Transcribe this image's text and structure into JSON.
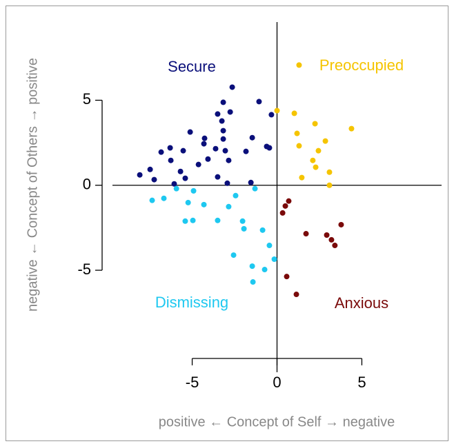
{
  "chart_data": {
    "type": "scatter",
    "x_label": "positive ←  Concept of Self  → negative",
    "y_label": "negative ←  Concept of Others → positive",
    "xlim": [
      -9.7,
      9.7
    ],
    "ylim": [
      -11,
      9.6
    ],
    "xticks": [
      -5,
      0,
      5
    ],
    "yticks": [
      -5,
      0,
      5
    ],
    "series": [
      {
        "name": "Secure",
        "color": "#0a0f7a",
        "x": [
          -2.64,
          -1.06,
          -3.17,
          -3.5,
          -2.76,
          -0.33,
          -3.25,
          -5.12,
          -3.17,
          -4.27,
          -3.17,
          -1.46,
          -0.61,
          -0.45,
          -6.3,
          -4.31,
          -3.62,
          -6.83,
          -5.53,
          -1.83,
          -3.05,
          -4.07,
          -6.26,
          -4.63,
          -2.85,
          -7.48,
          -5.69,
          -8.09,
          -7.24,
          -5.41,
          -3.5,
          -6.06,
          -2.93,
          -1.54
        ],
        "values": [
          5.77,
          4.92,
          4.88,
          4.19,
          4.31,
          4.15,
          3.78,
          3.13,
          3.21,
          2.76,
          2.72,
          2.8,
          2.28,
          2.2,
          2.2,
          2.44,
          2.15,
          1.95,
          2.03,
          1.99,
          2.03,
          1.54,
          1.46,
          1.22,
          1.46,
          0.93,
          0.81,
          0.61,
          0.33,
          0.41,
          0.49,
          0.08,
          0.12,
          0.16
        ]
      },
      {
        "name": "Preoccupied",
        "color": "#f5c400",
        "x": [
          1.3,
          0,
          1.02,
          2.24,
          4.39,
          1.18,
          2.85,
          1.3,
          2.44,
          2.11,
          2.28,
          3.09,
          1.46,
          3.09
        ],
        "values": [
          7.07,
          4.39,
          4.23,
          3.62,
          3.33,
          3.05,
          2.6,
          2.32,
          2.03,
          1.46,
          1.06,
          0.77,
          0.45,
          0
        ]
      },
      {
        "name": "Dismissing",
        "color": "#1ec8f0",
        "x": [
          -5.93,
          -4.92,
          -1.3,
          -6.67,
          -7.36,
          -2.44,
          -5.24,
          -4.31,
          -2.85,
          -4.96,
          -5.41,
          -3.5,
          -2.03,
          -1.95,
          -0.85,
          -0.45,
          -2.56,
          -0.16,
          -1.46,
          -0.73,
          -1.42
        ],
        "values": [
          -0.2,
          -0.33,
          -0.2,
          -0.77,
          -0.89,
          -0.61,
          -1.02,
          -1.14,
          -1.26,
          -2.07,
          -2.11,
          -2.07,
          -2.11,
          -2.56,
          -2.64,
          -3.54,
          -4.11,
          -4.35,
          -4.76,
          -4.96,
          -5.69
        ]
      },
      {
        "name": "Anxious",
        "color": "#7a0a0a",
        "x": [
          0.69,
          0.49,
          0.33,
          3.78,
          1.71,
          2.93,
          3.21,
          3.41,
          0.57,
          1.14
        ],
        "values": [
          -0.93,
          -1.22,
          -1.63,
          -2.32,
          -2.85,
          -2.93,
          -3.21,
          -3.54,
          -5.37,
          -6.42
        ]
      }
    ]
  }
}
